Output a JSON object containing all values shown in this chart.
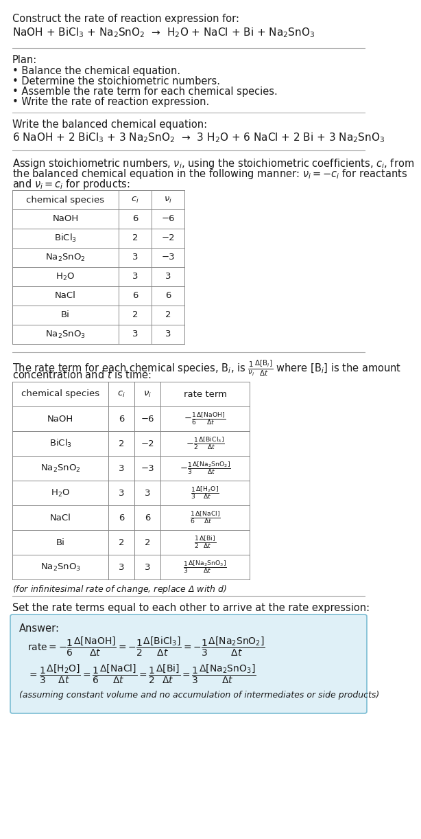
{
  "bg_color": "#ffffff",
  "text_color": "#1a1a1a",
  "title_line1": "Construct the rate of reaction expression for:",
  "reaction_unbalanced": "NaOH + BiCl$_3$ + Na$_2$SnO$_2$  →  H$_2$O + NaCl + Bi + Na$_2$SnO$_3$",
  "plan_header": "Plan:",
  "plan_items": [
    "• Balance the chemical equation.",
    "• Determine the stoichiometric numbers.",
    "• Assemble the rate term for each chemical species.",
    "• Write the rate of reaction expression."
  ],
  "balanced_header": "Write the balanced chemical equation:",
  "reaction_balanced": "6 NaOH + 2 BiCl$_3$ + 3 Na$_2$SnO$_2$  →  3 H$_2$O + 6 NaCl + 2 Bi + 3 Na$_2$SnO$_3$",
  "stoich_header_1": "Assign stoichiometric numbers, $\\nu_i$, using the stoichiometric coefficients, $c_i$, from",
  "stoich_header_2": "the balanced chemical equation in the following manner: $\\nu_i = -c_i$ for reactants",
  "stoich_header_3": "and $\\nu_i = c_i$ for products:",
  "table1_col0": "chemical species",
  "table1_col1": "$c_i$",
  "table1_col2": "$\\nu_i$",
  "table1_data": [
    [
      "NaOH",
      "6",
      "−6"
    ],
    [
      "BiCl$_3$",
      "2",
      "−2"
    ],
    [
      "Na$_2$SnO$_2$",
      "3",
      "−3"
    ],
    [
      "H$_2$O",
      "3",
      "3"
    ],
    [
      "NaCl",
      "6",
      "6"
    ],
    [
      "Bi",
      "2",
      "2"
    ],
    [
      "Na$_2$SnO$_3$",
      "3",
      "3"
    ]
  ],
  "rate_header_1": "The rate term for each chemical species, B$_i$, is $\\frac{1}{\\nu_i}\\frac{\\Delta[\\mathrm{B}_i]}{\\Delta t}$ where [B$_i$] is the amount",
  "rate_header_2": "concentration and $t$ is time:",
  "table2_col0": "chemical species",
  "table2_col1": "$c_i$",
  "table2_col2": "$\\nu_i$",
  "table2_col3": "rate term",
  "table2_data": [
    [
      "NaOH",
      "6",
      "−6",
      "$-\\frac{1}{6}\\frac{\\Delta[\\mathrm{NaOH}]}{\\Delta t}$"
    ],
    [
      "BiCl$_3$",
      "2",
      "−2",
      "$-\\frac{1}{2}\\frac{\\Delta[\\mathrm{BiCl_3}]}{\\Delta t}$"
    ],
    [
      "Na$_2$SnO$_2$",
      "3",
      "−3",
      "$-\\frac{1}{3}\\frac{\\Delta[\\mathrm{Na_2SnO_2}]}{\\Delta t}$"
    ],
    [
      "H$_2$O",
      "3",
      "3",
      "$\\frac{1}{3}\\frac{\\Delta[\\mathrm{H_2O}]}{\\Delta t}$"
    ],
    [
      "NaCl",
      "6",
      "6",
      "$\\frac{1}{6}\\frac{\\Delta[\\mathrm{NaCl}]}{\\Delta t}$"
    ],
    [
      "Bi",
      "2",
      "2",
      "$\\frac{1}{2}\\frac{\\Delta[\\mathrm{Bi}]}{\\Delta t}$"
    ],
    [
      "Na$_2$SnO$_3$",
      "3",
      "3",
      "$\\frac{1}{3}\\frac{\\Delta[\\mathrm{Na_2SnO_3}]}{\\Delta t}$"
    ]
  ],
  "infinitesimal_note": "(for infinitesimal rate of change, replace Δ with $d$)",
  "set_equal_header": "Set the rate terms equal to each other to arrive at the rate expression:",
  "answer_box_color": "#dff0f7",
  "answer_box_border": "#7bbdd4",
  "answer_label": "Answer:",
  "answer_line1": "$\\mathrm{rate} = -\\dfrac{1}{6}\\dfrac{\\Delta[\\mathrm{NaOH}]}{\\Delta t} = -\\dfrac{1}{2}\\dfrac{\\Delta[\\mathrm{BiCl_3}]}{\\Delta t} = -\\dfrac{1}{3}\\dfrac{\\Delta[\\mathrm{Na_2SnO_2}]}{\\Delta t}$",
  "answer_line2": "$= \\dfrac{1}{3}\\dfrac{\\Delta[\\mathrm{H_2O}]}{\\Delta t} = \\dfrac{1}{6}\\dfrac{\\Delta[\\mathrm{NaCl}]}{\\Delta t} = \\dfrac{1}{2}\\dfrac{\\Delta[\\mathrm{Bi}]}{\\Delta t} = \\dfrac{1}{3}\\dfrac{\\Delta[\\mathrm{Na_2SnO_3}]}{\\Delta t}$",
  "answer_note": "(assuming constant volume and no accumulation of intermediates or side products)",
  "fs": 10.5,
  "fs_small": 9.5
}
